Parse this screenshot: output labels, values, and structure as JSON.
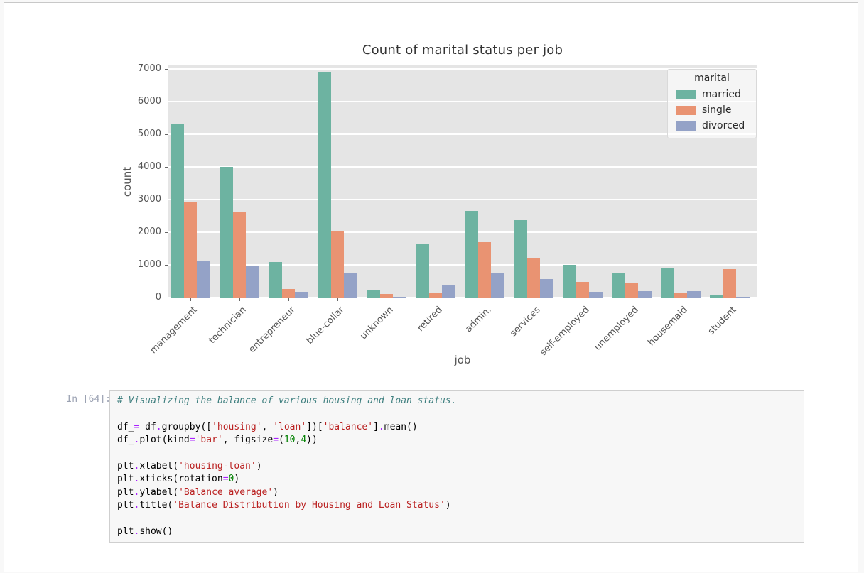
{
  "chart_data": {
    "type": "bar",
    "title": "Count of marital status per job",
    "xlabel": "job",
    "ylabel": "count",
    "ylim": [
      0,
      7300
    ],
    "yticks": [
      0,
      1000,
      2000,
      3000,
      4000,
      5000,
      6000,
      7000
    ],
    "grid": true,
    "plot_bg": "#e5e5e5",
    "grid_color": "#ffffff",
    "legend": {
      "title": "marital",
      "position": "upper right"
    },
    "categories": [
      "management",
      "technician",
      "entrepreneur",
      "blue-collar",
      "unknown",
      "retired",
      "admin.",
      "services",
      "self-employed",
      "unemployed",
      "housemaid",
      "student"
    ],
    "series": [
      {
        "name": "married",
        "color": "#6db3a1",
        "values": [
          5300,
          4000,
          1080,
          6900,
          210,
          1650,
          2650,
          2380,
          990,
          760,
          910,
          60
        ]
      },
      {
        "name": "single",
        "color": "#e99372",
        "values": [
          2920,
          2600,
          260,
          2020,
          110,
          130,
          1700,
          1200,
          470,
          430,
          150,
          880
        ]
      },
      {
        "name": "divorced",
        "color": "#94a2c7",
        "values": [
          1100,
          950,
          180,
          760,
          15,
          400,
          740,
          560,
          180,
          190,
          200,
          10
        ]
      }
    ]
  },
  "cell": {
    "prompt": "In [64]:",
    "code_lines": [
      {
        "segs": [
          {
            "c": "com",
            "t": "# Visualizing the balance of various housing and loan status."
          }
        ]
      },
      {
        "segs": []
      },
      {
        "segs": [
          {
            "c": "pln",
            "t": "df_"
          },
          {
            "c": "op",
            "t": "="
          },
          {
            "c": "pln",
            "t": " df"
          },
          {
            "c": "op",
            "t": "."
          },
          {
            "c": "pln",
            "t": "groupby(["
          },
          {
            "c": "str",
            "t": "'housing'"
          },
          {
            "c": "pln",
            "t": ", "
          },
          {
            "c": "str",
            "t": "'loan'"
          },
          {
            "c": "pln",
            "t": "])["
          },
          {
            "c": "str",
            "t": "'balance'"
          },
          {
            "c": "pln",
            "t": "]"
          },
          {
            "c": "op",
            "t": "."
          },
          {
            "c": "pln",
            "t": "mean()"
          }
        ]
      },
      {
        "segs": [
          {
            "c": "pln",
            "t": "df_"
          },
          {
            "c": "op",
            "t": "."
          },
          {
            "c": "pln",
            "t": "plot(kind"
          },
          {
            "c": "op",
            "t": "="
          },
          {
            "c": "str",
            "t": "'bar'"
          },
          {
            "c": "pln",
            "t": ", figsize"
          },
          {
            "c": "op",
            "t": "="
          },
          {
            "c": "pln",
            "t": "("
          },
          {
            "c": "num",
            "t": "10"
          },
          {
            "c": "pln",
            "t": ","
          },
          {
            "c": "num",
            "t": "4"
          },
          {
            "c": "pln",
            "t": "))"
          }
        ]
      },
      {
        "segs": []
      },
      {
        "segs": [
          {
            "c": "pln",
            "t": "plt"
          },
          {
            "c": "op",
            "t": "."
          },
          {
            "c": "pln",
            "t": "xlabel("
          },
          {
            "c": "str",
            "t": "'housing-loan'"
          },
          {
            "c": "pln",
            "t": ")"
          }
        ]
      },
      {
        "segs": [
          {
            "c": "pln",
            "t": "plt"
          },
          {
            "c": "op",
            "t": "."
          },
          {
            "c": "pln",
            "t": "xticks(rotation"
          },
          {
            "c": "op",
            "t": "="
          },
          {
            "c": "num",
            "t": "0"
          },
          {
            "c": "pln",
            "t": ")"
          }
        ]
      },
      {
        "segs": [
          {
            "c": "pln",
            "t": "plt"
          },
          {
            "c": "op",
            "t": "."
          },
          {
            "c": "pln",
            "t": "ylabel("
          },
          {
            "c": "str",
            "t": "'Balance average'"
          },
          {
            "c": "pln",
            "t": ")"
          }
        ]
      },
      {
        "segs": [
          {
            "c": "pln",
            "t": "plt"
          },
          {
            "c": "op",
            "t": "."
          },
          {
            "c": "pln",
            "t": "title("
          },
          {
            "c": "str",
            "t": "'Balance Distribution by Housing and Loan Status'"
          },
          {
            "c": "pln",
            "t": ")"
          }
        ]
      },
      {
        "segs": []
      },
      {
        "segs": [
          {
            "c": "pln",
            "t": "plt"
          },
          {
            "c": "op",
            "t": "."
          },
          {
            "c": "pln",
            "t": "show()"
          }
        ]
      }
    ]
  }
}
